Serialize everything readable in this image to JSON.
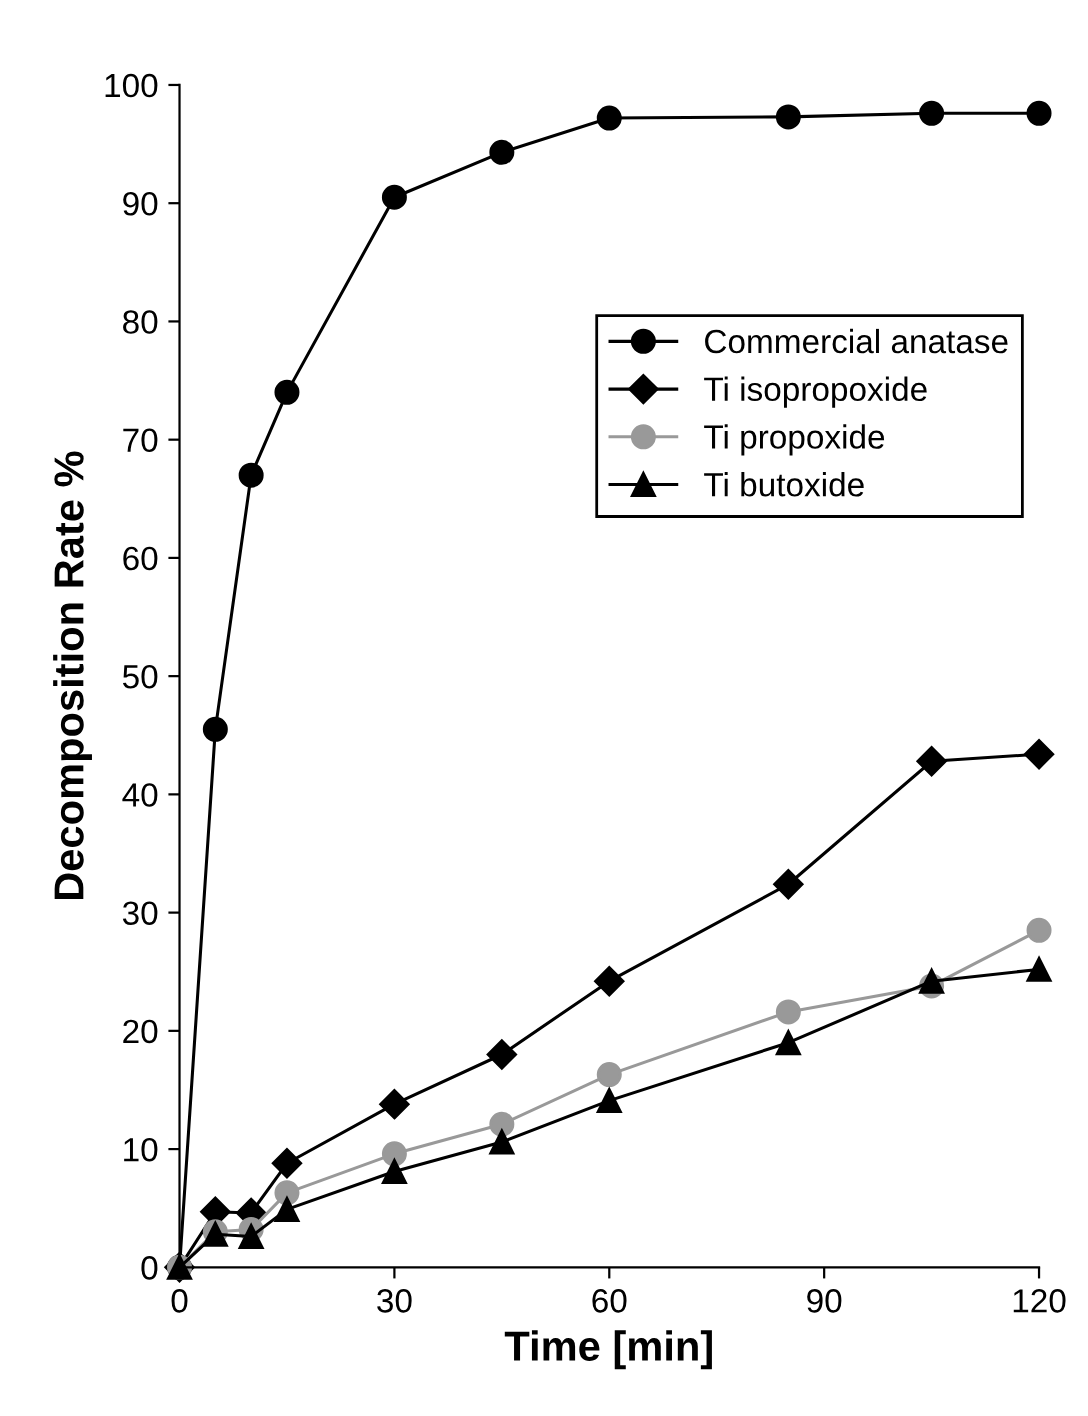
{
  "chart_data": {
    "type": "line",
    "xlabel": "Time [min]",
    "ylabel": "Decomposition Rate %",
    "x": [
      0,
      5,
      10,
      15,
      30,
      45,
      60,
      85,
      105,
      120
    ],
    "series": [
      {
        "name": "Commercial anatase",
        "color": "#000000",
        "marker": "circle",
        "values": [
          0,
          45.5,
          67,
          74,
          90.5,
          94.3,
          97.2,
          97.3,
          97.6,
          97.6
        ]
      },
      {
        "name": "Ti isopropoxide",
        "color": "#000000",
        "marker": "diamond",
        "values": [
          0,
          4.7,
          4.6,
          8.8,
          13.8,
          18,
          24.2,
          32.4,
          42.8,
          43.4
        ]
      },
      {
        "name": "Ti propoxide",
        "color": "#999999",
        "marker": "circle",
        "values": [
          0,
          3,
          3.2,
          6.3,
          9.6,
          12.1,
          16.3,
          21.6,
          23.8,
          28.5
        ]
      },
      {
        "name": "Ti butoxide",
        "color": "#000000",
        "marker": "triangle",
        "values": [
          0,
          2.8,
          2.6,
          4.9,
          8.1,
          10.6,
          14.1,
          19,
          24.2,
          25.2
        ]
      }
    ],
    "xlim": [
      0,
      120
    ],
    "xticks": [
      0,
      30,
      60,
      90,
      120
    ],
    "ylim": [
      0,
      100
    ],
    "yticks": [
      0,
      10,
      20,
      30,
      40,
      50,
      60,
      70,
      80,
      90,
      100
    ],
    "grid": false,
    "legend": "center right"
  }
}
